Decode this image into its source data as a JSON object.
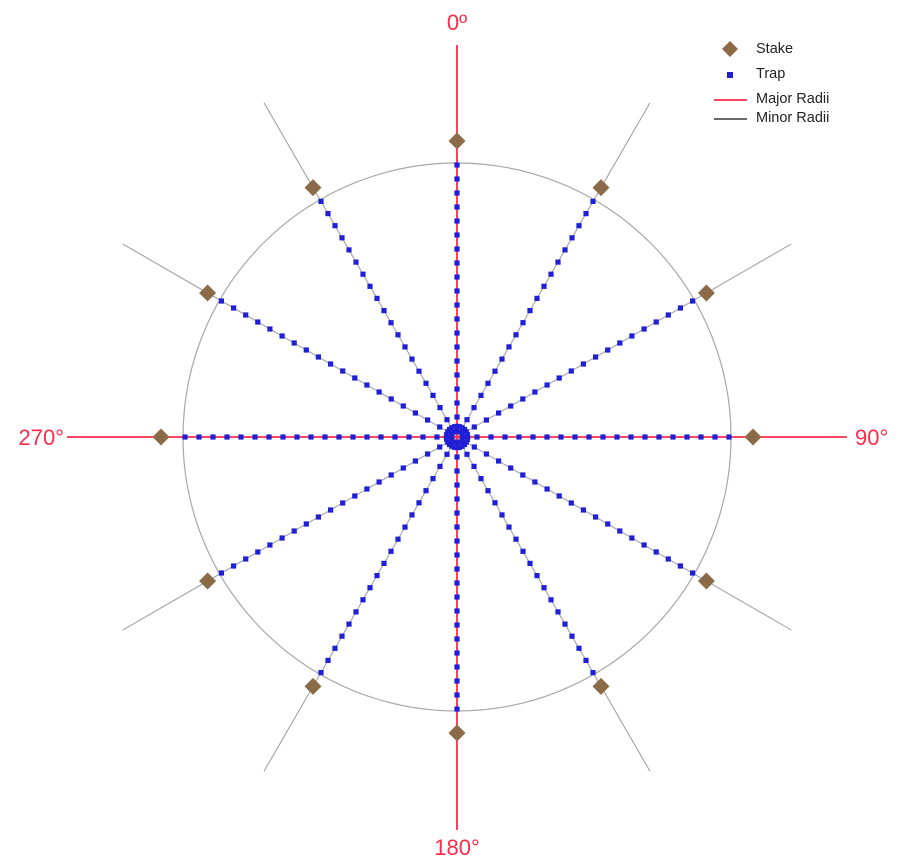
{
  "diagram": {
    "angle_labels": [
      {
        "angle": 0,
        "text": "0º"
      },
      {
        "angle": 90,
        "text": "90°"
      },
      {
        "angle": 180,
        "text": "180°"
      },
      {
        "angle": 270,
        "text": "270°"
      }
    ],
    "legend": {
      "stake": "Stake",
      "trap": "Trap",
      "major": "Major Radii",
      "minor": "Minor Radii"
    },
    "colors": {
      "stake": "#8b6b47",
      "trap": "#1f1fd6",
      "major": "#ff2b4a",
      "minor": "#9a9a9a",
      "circle": "#a8a8a8",
      "label": "#ff2b4a"
    },
    "major_angles_deg": [
      0,
      90,
      180,
      270
    ],
    "minor_angles_deg": [
      30,
      60,
      120,
      150,
      210,
      240,
      300,
      330
    ],
    "traps_per_radius": 20
  }
}
